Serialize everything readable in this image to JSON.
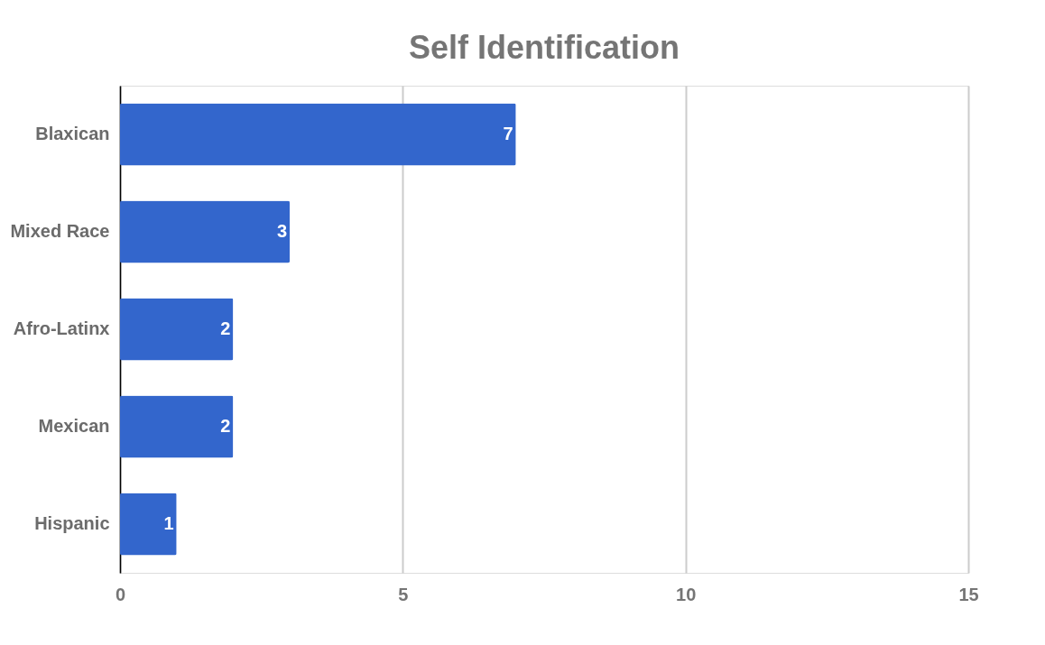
{
  "chart_data": {
    "type": "bar",
    "orientation": "horizontal",
    "title": "Self Identification",
    "categories": [
      "Blaxican",
      "Mixed Race",
      "Afro-Latinx",
      "Mexican",
      "Hispanic"
    ],
    "values": [
      7,
      3,
      2,
      2,
      1
    ],
    "color": "#3366cc",
    "xlim": [
      0,
      15
    ],
    "xticks": [
      0,
      5,
      10,
      15
    ],
    "grid": "x",
    "data_labels": true
  }
}
